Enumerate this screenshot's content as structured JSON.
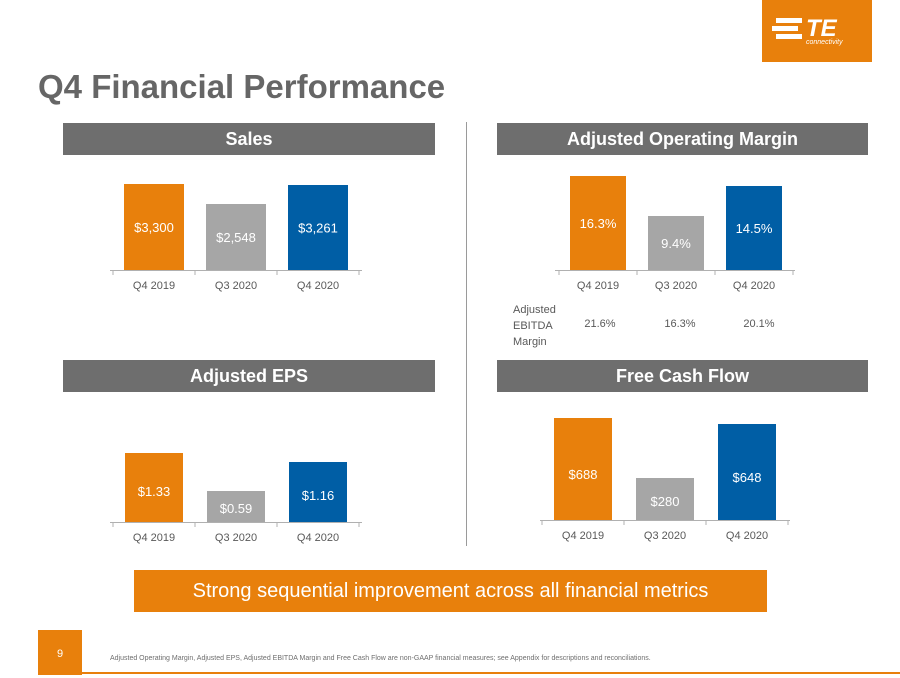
{
  "header": {
    "title": "Q4 Financial Performance",
    "logo_text": "TE",
    "logo_subtext": "connectivity"
  },
  "panels": {
    "sales": {
      "title": "Sales"
    },
    "aom": {
      "title": "Adjusted Operating Margin"
    },
    "eps": {
      "title": "Adjusted EPS"
    },
    "fcf": {
      "title": "Free Cash Flow"
    }
  },
  "ebitda": {
    "label": "Adjusted EBITDA Margin",
    "values": [
      "21.6%",
      "16.3%",
      "20.1%"
    ]
  },
  "banner": {
    "text": "Strong sequential improvement across all financial metrics"
  },
  "footer": {
    "page_number": "9",
    "footnote": "Adjusted Operating Margin, Adjusted EPS, Adjusted EBITDA Margin and Free Cash Flow are non-GAAP financial measures; see Appendix for descriptions and reconciliations."
  },
  "colors": {
    "orange": "#e8800c",
    "gray": "#a6a6a6",
    "blue": "#005ea5",
    "header_gray": "#6e6e6e"
  },
  "chart_data": [
    {
      "id": "sales",
      "type": "bar",
      "categories": [
        "Q4 2019",
        "Q3 2020",
        "Q4 2020"
      ],
      "values": [
        3300,
        2548,
        3261
      ],
      "labels": [
        "$3,300",
        "$2,548",
        "$3,261"
      ],
      "title": "Sales"
    },
    {
      "id": "aom",
      "type": "bar",
      "categories": [
        "Q4 2019",
        "Q3 2020",
        "Q4 2020"
      ],
      "values": [
        16.3,
        9.4,
        14.5
      ],
      "labels": [
        "16.3%",
        "9.4%",
        "14.5%"
      ],
      "title": "Adjusted Operating Margin"
    },
    {
      "id": "eps",
      "type": "bar",
      "categories": [
        "Q4 2019",
        "Q3 2020",
        "Q4 2020"
      ],
      "values": [
        1.33,
        0.59,
        1.16
      ],
      "labels": [
        "$1.33",
        "$0.59",
        "$1.16"
      ],
      "title": "Adjusted EPS"
    },
    {
      "id": "fcf",
      "type": "bar",
      "categories": [
        "Q4 2019",
        "Q3 2020",
        "Q4 2020"
      ],
      "values": [
        688,
        280,
        648
      ],
      "labels": [
        "$688",
        "$280",
        "$648"
      ],
      "title": "Free Cash Flow"
    }
  ]
}
